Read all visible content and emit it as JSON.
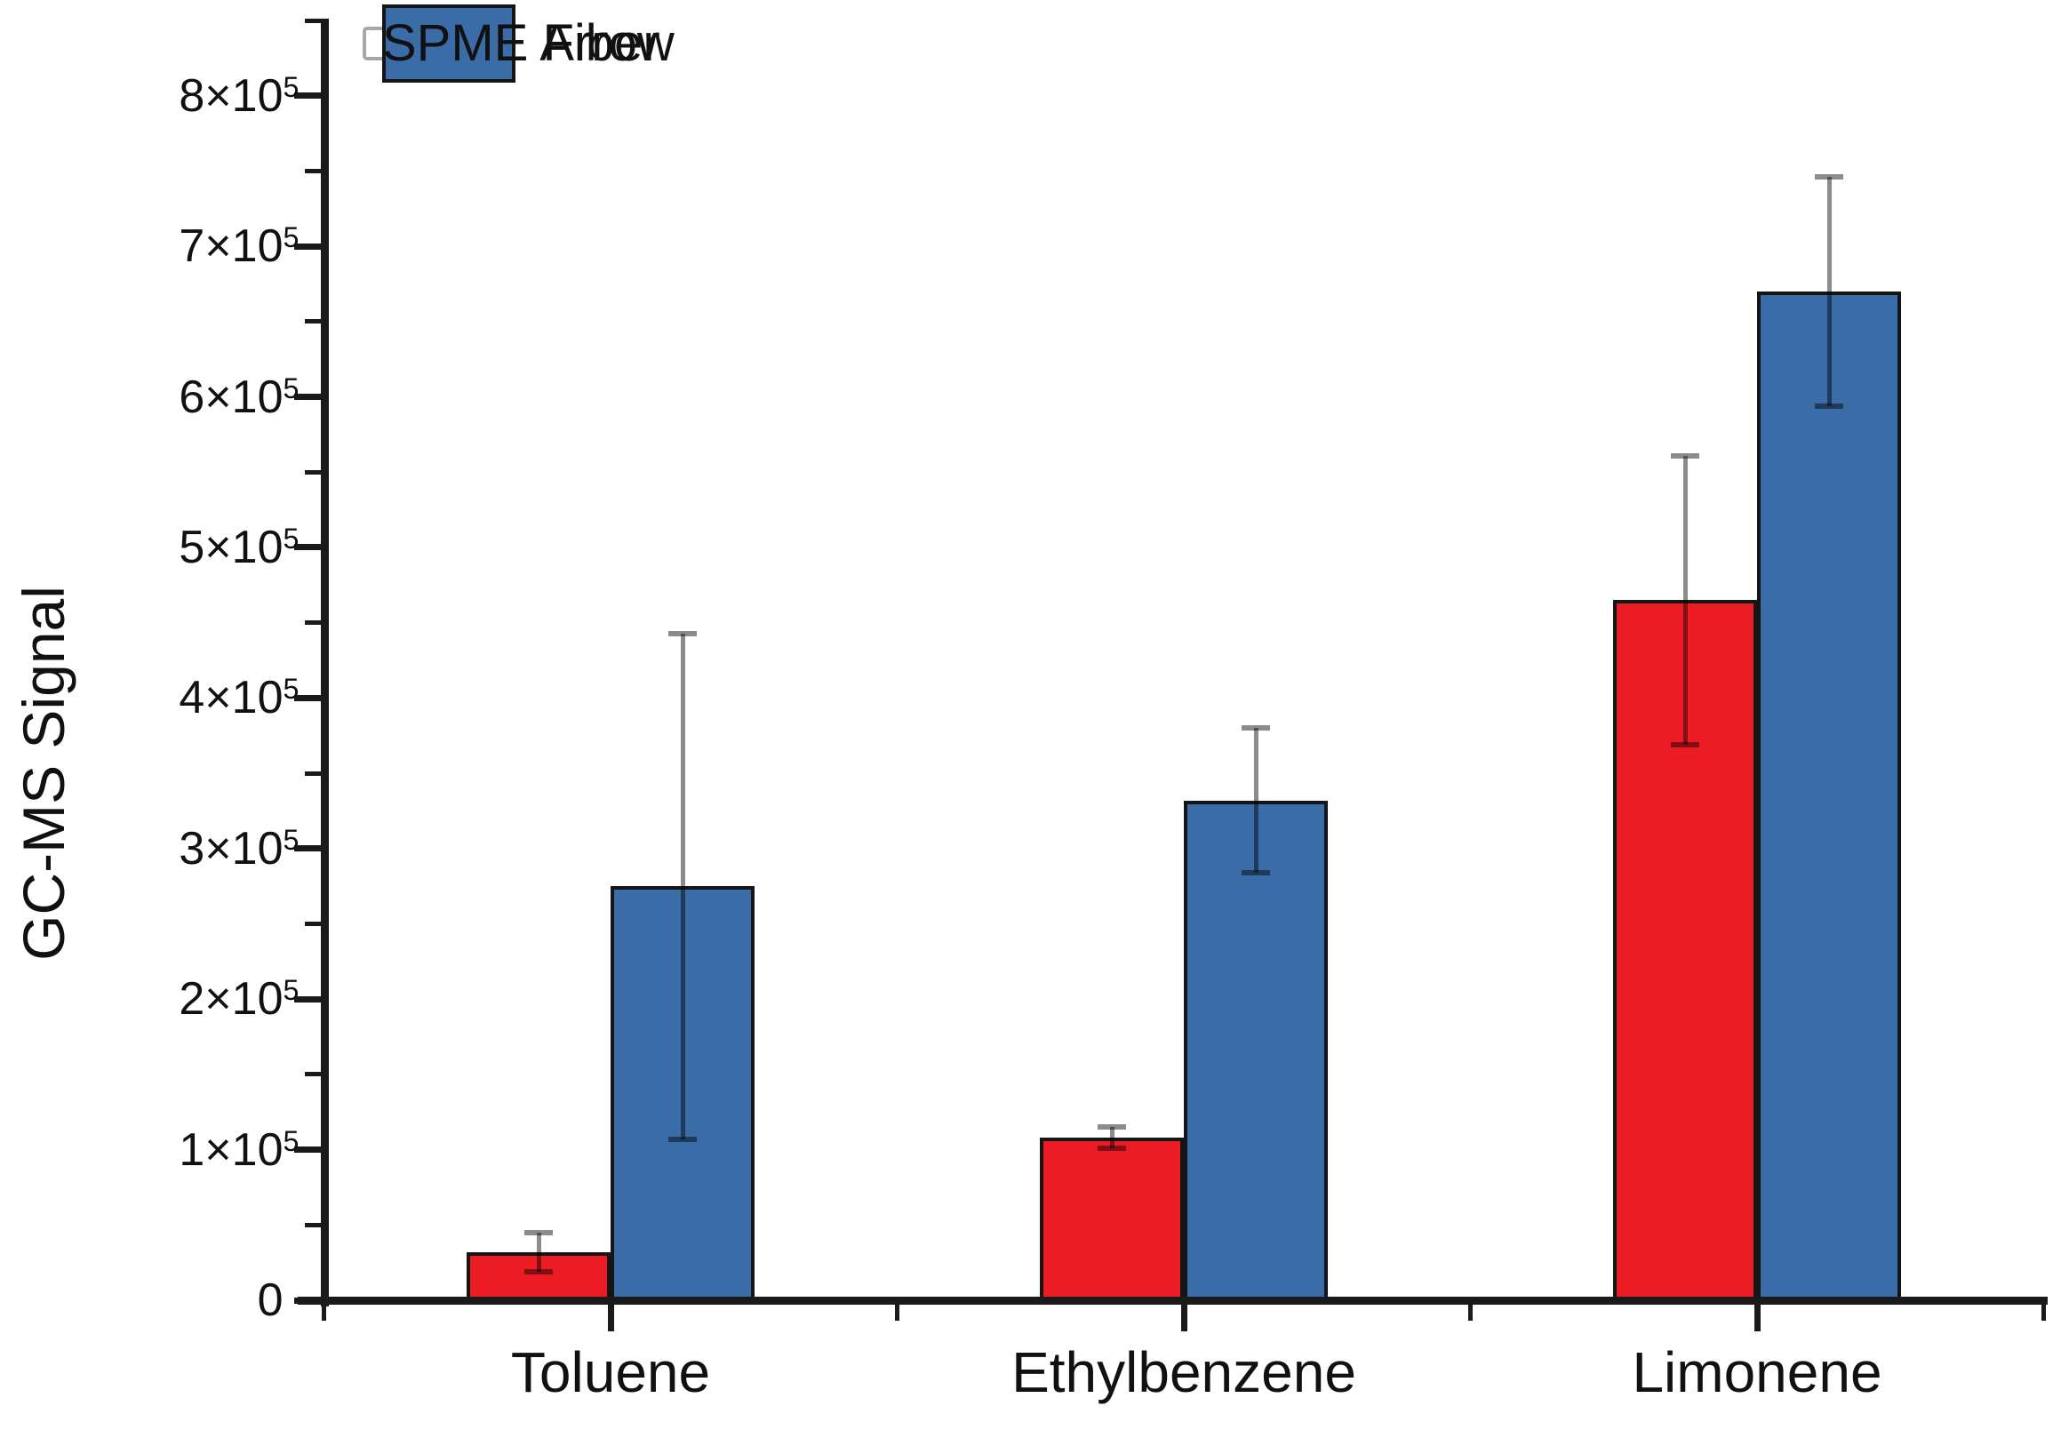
{
  "chart_data": {
    "type": "bar",
    "title": "",
    "xlabel": "",
    "ylabel": "GC-MS Signal",
    "categories": [
      "Toluene",
      "Ethylbenzene",
      "Limonene"
    ],
    "series": [
      {
        "name": "SPME Fiber",
        "color": "#ec1c24",
        "values": [
          32000,
          108000,
          465000
        ],
        "errors": [
          13000,
          7000,
          96000
        ]
      },
      {
        "name": "SPME Arrow",
        "color": "#3a6ca8",
        "values": [
          275000,
          332000,
          670000
        ],
        "errors": [
          168000,
          48000,
          76000
        ]
      }
    ],
    "ylim": [
      0,
      850000
    ],
    "yticks": [
      {
        "value": 0,
        "label": "0"
      },
      {
        "value": 100000,
        "label": "1×10^5"
      },
      {
        "value": 200000,
        "label": "2×10^5"
      },
      {
        "value": 300000,
        "label": "3×10^5"
      },
      {
        "value": 400000,
        "label": "4×10^5"
      },
      {
        "value": 500000,
        "label": "5×10^5"
      },
      {
        "value": 600000,
        "label": "6×10^5"
      },
      {
        "value": 700000,
        "label": "7×10^5"
      },
      {
        "value": 800000,
        "label": "8×10^5"
      }
    ],
    "minor_tick_step": 50000,
    "grid": false,
    "legend_position": "top-left",
    "error_bars": true,
    "colors": {
      "axis": "#1a1a1a",
      "text": "#111111",
      "bar_outline": "#151515",
      "error_bar": "rgba(0,0,0,0.45)",
      "legend_border": "#a8a8a8",
      "background": "#ffffff"
    }
  }
}
